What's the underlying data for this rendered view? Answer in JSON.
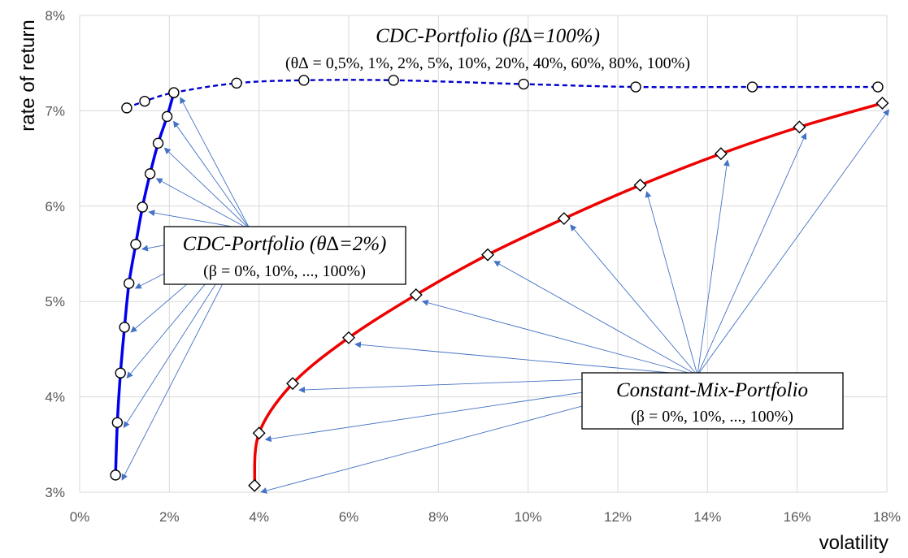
{
  "chart_data": {
    "type": "line",
    "xlabel": "volatility",
    "ylabel": "rate of return",
    "xlim": [
      0,
      18
    ],
    "ylim": [
      3,
      8
    ],
    "x_ticks": [
      "0%",
      "2%",
      "4%",
      "6%",
      "8%",
      "10%",
      "12%",
      "14%",
      "16%",
      "18%"
    ],
    "y_ticks": [
      "3%",
      "4%",
      "5%",
      "6%",
      "7%",
      "8%"
    ],
    "grid": true,
    "series": [
      {
        "name": "CDC-Portfolio (θ∆=2%)",
        "color": "#0000ee",
        "style": "solid",
        "marker": "circle",
        "points": [
          [
            0.8,
            3.18
          ],
          [
            0.84,
            3.73
          ],
          [
            0.91,
            4.25
          ],
          [
            1.0,
            4.73
          ],
          [
            1.1,
            5.19
          ],
          [
            1.25,
            5.6
          ],
          [
            1.4,
            5.99
          ],
          [
            1.57,
            6.34
          ],
          [
            1.75,
            6.66
          ],
          [
            1.95,
            6.94
          ],
          [
            2.1,
            7.19
          ]
        ]
      },
      {
        "name": "CDC-Portfolio (β∆=100%)",
        "color": "#0000cc",
        "style": "dashed",
        "marker": "circle",
        "points": [
          [
            1.05,
            7.03
          ],
          [
            1.45,
            7.1
          ],
          [
            2.1,
            7.19
          ],
          [
            3.5,
            7.29
          ],
          [
            5.0,
            7.32
          ],
          [
            7.0,
            7.32
          ],
          [
            9.9,
            7.28
          ],
          [
            12.4,
            7.25
          ],
          [
            15.0,
            7.25
          ],
          [
            17.8,
            7.25
          ]
        ]
      },
      {
        "name": "Constant-Mix-Portfolio",
        "color": "#ee0000",
        "style": "solid",
        "marker": "diamond",
        "points": [
          [
            3.9,
            3.07
          ],
          [
            4.0,
            3.62
          ],
          [
            4.75,
            4.14
          ],
          [
            6.0,
            4.62
          ],
          [
            7.5,
            5.07
          ],
          [
            9.1,
            5.49
          ],
          [
            10.8,
            5.87
          ],
          [
            12.5,
            6.22
          ],
          [
            14.3,
            6.55
          ],
          [
            16.05,
            6.83
          ],
          [
            17.9,
            7.08
          ]
        ]
      }
    ],
    "annotations": [
      {
        "id": "cdc-beta",
        "title": "CDC-Portfolio (β∆=100%)",
        "subtitle": "(θ∆ = 0,5%, 1%, 2%, 5%, 10%, 20%, 40%, 60%, 80%, 100%)",
        "boxed": false
      },
      {
        "id": "cdc-theta",
        "title": "CDC-Portfolio (θ∆=2%)",
        "subtitle": "(β = 0%, 10%, ..., 100%)",
        "boxed": true
      },
      {
        "id": "constant-mix",
        "title": "Constant-Mix-Portfolio",
        "subtitle": "(β = 0%, 10%, ..., 100%)",
        "boxed": true
      }
    ],
    "arrow_color": "#4472c4"
  }
}
